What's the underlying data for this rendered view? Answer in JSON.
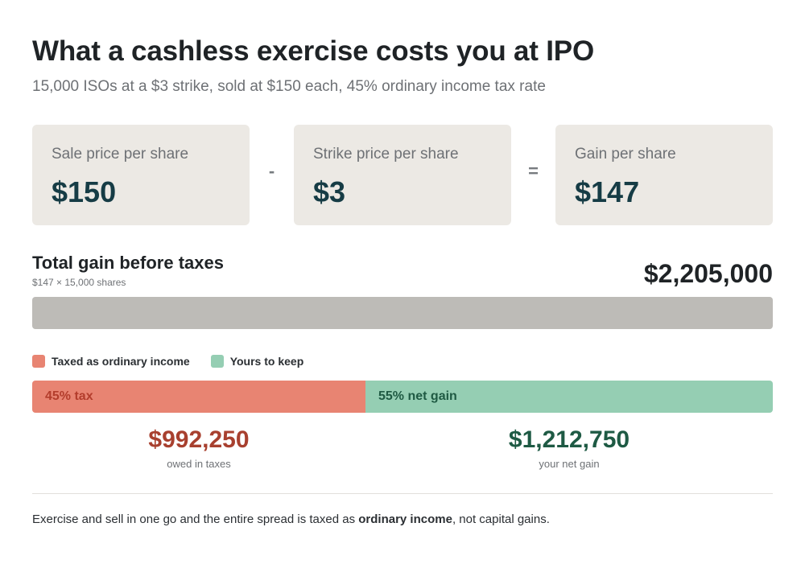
{
  "chart_data": {
    "type": "bar",
    "title": "What a cashless exercise costs you at IPO",
    "subtitle": "15,000 ISOs at a $3 strike, sold at $150 each, 45% ordinary income tax rate",
    "cards": [
      {
        "label": "Sale price per share",
        "value": "$150"
      },
      {
        "label": "Strike price per share",
        "value": "$3"
      },
      {
        "label": "Gain per share",
        "value": "$147"
      }
    ],
    "operators": [
      "-",
      "="
    ],
    "total": {
      "label": "Total gain before taxes",
      "note": "$147 × 15,000 shares",
      "value": 2205000,
      "value_label": "$2,205,000"
    },
    "legend": [
      {
        "name": "Taxed as ordinary income",
        "color": "#e88472"
      },
      {
        "name": "Yours to keep",
        "color": "#95ceb3"
      }
    ],
    "segments": [
      {
        "label": "45% tax",
        "share": 0.45,
        "value": 992250,
        "amount_label": "$992,250",
        "note": "owed in taxes",
        "color": "#e88472",
        "text_color": "#b33d2c",
        "amount_color": "#a8402f"
      },
      {
        "label": "55% net gain",
        "share": 0.55,
        "value": 1212750,
        "amount_label": "$1,212,750",
        "note": "your net gain",
        "color": "#95ceb3",
        "text_color": "#1f5a43",
        "amount_color": "#1e5a44"
      }
    ],
    "footer": {
      "before": "Exercise and sell in one go and the entire spread is taxed as ",
      "emphasis": "ordinary income",
      "after": ", not capital gains."
    }
  }
}
